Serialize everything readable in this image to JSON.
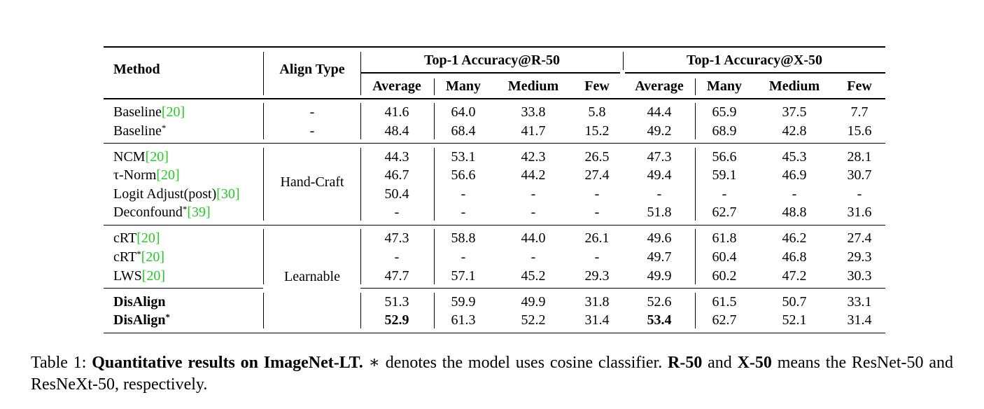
{
  "table": {
    "header": {
      "method": "Method",
      "align_type": "Align Type",
      "groups": [
        "Top-1 Accuracy@R-50",
        "Top-1 Accuracy@X-50"
      ],
      "subcolumns": [
        "Average",
        "Many",
        "Medium",
        "Few",
        "Average",
        "Many",
        "Medium",
        "Few"
      ]
    },
    "sections": [
      {
        "blocks": [
          [
            {
              "name": "Baseline",
              "cite": "[20]",
              "align": "-",
              "values": [
                "41.6",
                "64.0",
                "33.8",
                "5.8",
                "44.4",
                "65.9",
                "37.5",
                "7.7"
              ]
            },
            {
              "name": "Baseline",
              "star": "*",
              "align": "-",
              "values": [
                "48.4",
                "68.4",
                "41.7",
                "15.2",
                "49.2",
                "68.9",
                "42.8",
                "15.6"
              ]
            }
          ]
        ]
      },
      {
        "align": "Hand-Craft",
        "blocks": [
          [
            {
              "name": "NCM",
              "cite": "[20]",
              "values": [
                "44.3",
                "53.1",
                "42.3",
                "26.5",
                "47.3",
                "56.6",
                "45.3",
                "28.1"
              ]
            },
            {
              "name": "τ-Norm",
              "cite": "[20]",
              "values": [
                "46.7",
                "56.6",
                "44.2",
                "27.4",
                "49.4",
                "59.1",
                "46.9",
                "30.7"
              ]
            },
            {
              "name": "Logit Adjust(post)",
              "cite": "[30]",
              "values": [
                "50.4",
                "-",
                "-",
                "-",
                "-",
                "-",
                "-",
                "-"
              ]
            },
            {
              "name": "Deconfound",
              "star": "*",
              "cite": "[39]",
              "values": [
                "-",
                "-",
                "-",
                "-",
                "51.8",
                "62.7",
                "48.8",
                "31.6"
              ]
            }
          ]
        ]
      },
      {
        "align": "Learnable",
        "blocks": [
          [
            {
              "name": "cRT",
              "cite": "[20]",
              "values": [
                "47.3",
                "58.8",
                "44.0",
                "26.1",
                "49.6",
                "61.8",
                "46.2",
                "27.4"
              ]
            },
            {
              "name": "cRT",
              "star": "*",
              "cite": "[20]",
              "values": [
                "-",
                "-",
                "-",
                "-",
                "49.7",
                "60.4",
                "46.8",
                "29.3"
              ]
            },
            {
              "name": "LWS",
              "cite": "[20]",
              "values": [
                "47.7",
                "57.1",
                "45.2",
                "29.3",
                "49.9",
                "60.2",
                "47.2",
                "30.3"
              ]
            }
          ],
          [
            {
              "name": "DisAlign",
              "bold": true,
              "values": [
                "51.3",
                "59.9",
                "49.9",
                "31.8",
                "52.6",
                "61.5",
                "50.7",
                "33.1"
              ]
            },
            {
              "name": "DisAlign",
              "star": "*",
              "bold": true,
              "bold_values": [
                0,
                4
              ],
              "values": [
                "52.9",
                "61.3",
                "52.2",
                "31.4",
                "53.4",
                "62.7",
                "52.1",
                "31.4"
              ]
            }
          ]
        ]
      }
    ]
  },
  "caption": [
    {
      "text": "Table 1: "
    },
    {
      "text": "Quantitative results on ImageNet-LT.",
      "bold": true
    },
    {
      "text": " ∗ denotes the model uses cosine classifier. "
    },
    {
      "text": "R-50",
      "bold": true
    },
    {
      "text": " and "
    },
    {
      "text": "X-50",
      "bold": true
    },
    {
      "text": " means the ResNet-50 and ResNeXt-50, respectively."
    }
  ]
}
